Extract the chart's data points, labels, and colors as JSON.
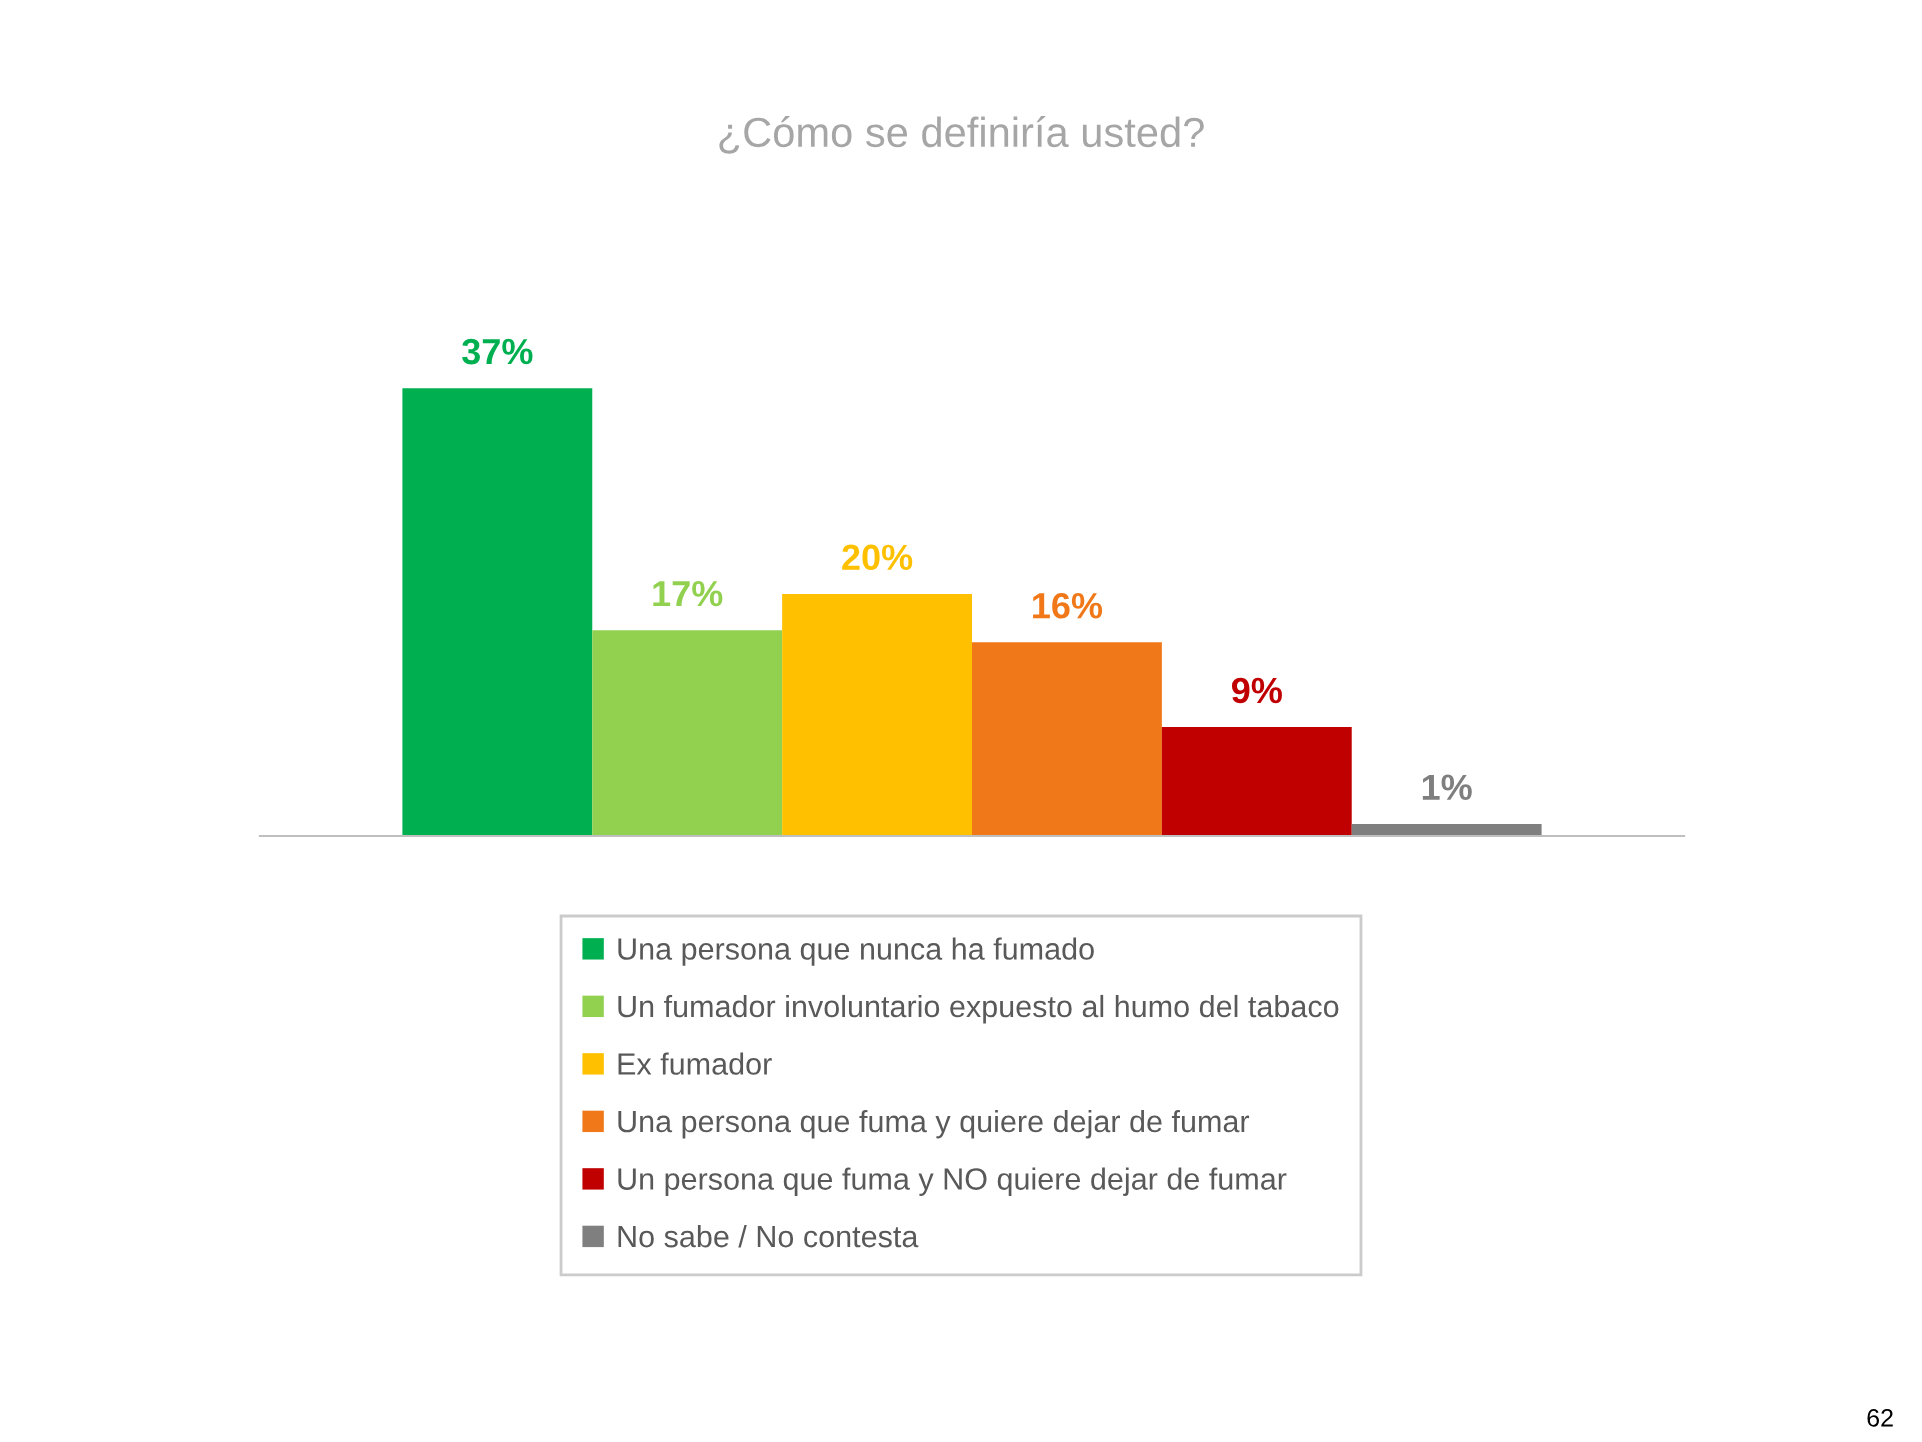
{
  "chart_data": {
    "type": "bar",
    "title": "¿Cómo se definiría usted?",
    "categories": [
      null
    ],
    "series": [
      {
        "name": "Una persona que nunca ha fumado",
        "color": "#00b050",
        "values": [
          37
        ],
        "value_labels": [
          "37%"
        ]
      },
      {
        "name": "Un fumador involuntario expuesto al humo del tabaco",
        "color": "#92d050",
        "values": [
          17
        ],
        "value_labels": [
          "17%"
        ]
      },
      {
        "name": "Ex fumador",
        "color": "#ffc000",
        "values": [
          20
        ],
        "value_labels": [
          "20%"
        ]
      },
      {
        "name": "Una persona que fuma y quiere dejar de fumar",
        "color": "#f07818",
        "values": [
          16
        ],
        "value_labels": [
          "16%"
        ]
      },
      {
        "name": "Un persona que fuma y NO quiere dejar de fumar",
        "color": "#c00000",
        "values": [
          9
        ],
        "value_labels": [
          "9%"
        ]
      },
      {
        "name": "No sabe / No contesta",
        "color": "#7f7f7f",
        "values": [
          1
        ],
        "value_labels": [
          "1%"
        ]
      }
    ],
    "legend": "bottom",
    "annotations": [
      "62"
    ]
  }
}
